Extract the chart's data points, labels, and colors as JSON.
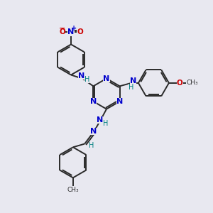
{
  "bg_color": "#e8e8f0",
  "bond_color": "#2a2a2a",
  "N_color": "#0000cc",
  "O_color": "#cc0000",
  "NH_color": "#008080",
  "figsize": [
    3.0,
    3.0
  ],
  "dpi": 100,
  "xlim": [
    0,
    10
  ],
  "ylim": [
    0,
    10
  ]
}
